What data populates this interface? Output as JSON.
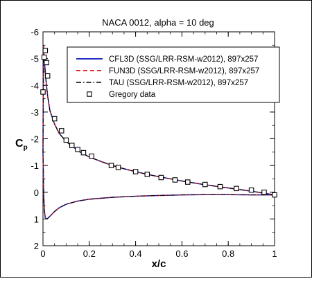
{
  "chart_data": {
    "type": "line",
    "title": "NACA 0012, alpha = 10 deg",
    "xlabel": "x/c",
    "ylabel": {
      "main": "C",
      "sub": "p"
    },
    "xlim": [
      0,
      1
    ],
    "ylim": [
      -6,
      2
    ],
    "y_inverted": true,
    "grid": false,
    "legend_placement": "top-right",
    "x_ticks": [
      0,
      0.2,
      0.4,
      0.6,
      0.8,
      1
    ],
    "x_tick_labels": [
      "0",
      "0.2",
      "0.4",
      "0.6",
      "0.8",
      "1"
    ],
    "y_ticks": [
      -6,
      -5,
      -4,
      -3,
      -2,
      -1,
      0,
      1,
      2
    ],
    "y_tick_labels": [
      "-6",
      "-5",
      "-4",
      "-3",
      "-2",
      "-1",
      "0",
      "1",
      "2"
    ],
    "upper_surface_x": [
      0.0,
      0.002,
      0.005,
      0.01,
      0.015,
      0.02,
      0.03,
      0.05,
      0.07,
      0.1,
      0.13,
      0.15,
      0.2,
      0.25,
      0.3,
      0.35,
      0.4,
      0.45,
      0.5,
      0.55,
      0.6,
      0.65,
      0.7,
      0.75,
      0.8,
      0.85,
      0.9,
      0.95,
      1.0
    ],
    "upper_surface_cp": [
      -1.5,
      -5.5,
      -5.0,
      -4.5,
      -4.0,
      -3.6,
      -3.05,
      -2.55,
      -2.2,
      -1.9,
      -1.7,
      -1.55,
      -1.32,
      -1.15,
      -1.0,
      -0.88,
      -0.77,
      -0.67,
      -0.58,
      -0.5,
      -0.42,
      -0.35,
      -0.28,
      -0.22,
      -0.16,
      -0.1,
      -0.04,
      0.03,
      0.1
    ],
    "lower_surface_x": [
      0.0,
      0.003,
      0.006,
      0.01,
      0.015,
      0.02,
      0.03,
      0.05,
      0.07,
      0.1,
      0.15,
      0.2,
      0.3,
      0.4,
      0.5,
      0.6,
      0.7,
      0.8,
      0.9,
      0.95,
      1.0
    ],
    "lower_surface_cp": [
      -1.5,
      0.1,
      0.7,
      0.95,
      1.0,
      0.98,
      0.9,
      0.72,
      0.58,
      0.45,
      0.33,
      0.26,
      0.19,
      0.15,
      0.12,
      0.1,
      0.09,
      0.09,
      0.1,
      0.1,
      0.1
    ],
    "series": [
      {
        "name": "CFL3D (SSG/LRR-RSM-w2012), 897x257",
        "color": "#1f2fbf",
        "style": "solid"
      },
      {
        "name": "FUN3D (SSG/LRR-RSM-w2012), 897x257",
        "color": "#dd1111",
        "style": "dashed"
      },
      {
        "name": "TAU (SSG/LRR-RSM-w2012), 897x257",
        "color": "#000000",
        "style": "dashdot"
      },
      {
        "name": "Gregory data",
        "marker": "square",
        "x": [
          0.0,
          0.005,
          0.01,
          0.015,
          0.02,
          0.05,
          0.08,
          0.1,
          0.125,
          0.15,
          0.175,
          0.21,
          0.295,
          0.325,
          0.4,
          0.45,
          0.51,
          0.57,
          0.625,
          0.7,
          0.765,
          0.835,
          0.9,
          0.955,
          1.0
        ],
        "y": [
          -3.75,
          -5.05,
          -5.3,
          -4.85,
          -4.35,
          -2.75,
          -2.3,
          -1.95,
          -1.75,
          -1.6,
          -1.48,
          -1.35,
          -1.0,
          -0.93,
          -0.77,
          -0.67,
          -0.55,
          -0.46,
          -0.38,
          -0.29,
          -0.21,
          -0.14,
          -0.08,
          0.0,
          0.1
        ]
      }
    ]
  }
}
